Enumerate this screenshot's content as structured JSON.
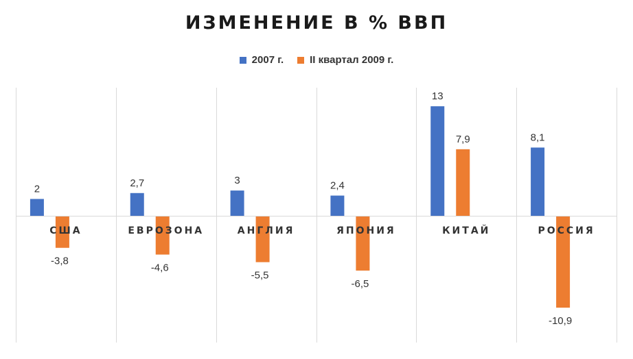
{
  "title": "ИЗМЕНЕНИЕ В % ВВП",
  "colors": {
    "series1": "#4472C4",
    "series2": "#ED7D31",
    "grid": "#D9D9D9"
  },
  "chart_data": {
    "type": "bar",
    "title": "ИЗМЕНЕНИЕ В % ВВП",
    "categories": [
      "США",
      "ЕВРОЗОНА",
      "АНГЛИЯ",
      "ЯПОНИЯ",
      "КИТАЙ",
      "РОССИЯ"
    ],
    "series": [
      {
        "name": "2007 г.",
        "values": [
          2,
          2.7,
          3,
          2.4,
          13,
          8.1
        ],
        "labels": [
          "2",
          "2,7",
          "3",
          "2,4",
          "13",
          "8,1"
        ]
      },
      {
        "name": "II квартал 2009 г.",
        "values": [
          -3.8,
          -4.6,
          -5.5,
          -6.5,
          7.9,
          -10.9
        ],
        "labels": [
          "-3,8",
          "-4,6",
          "-5,5",
          "-6,5",
          "7,9",
          "-10,9"
        ]
      }
    ],
    "legend": "top",
    "grid": "vertical category separators"
  }
}
